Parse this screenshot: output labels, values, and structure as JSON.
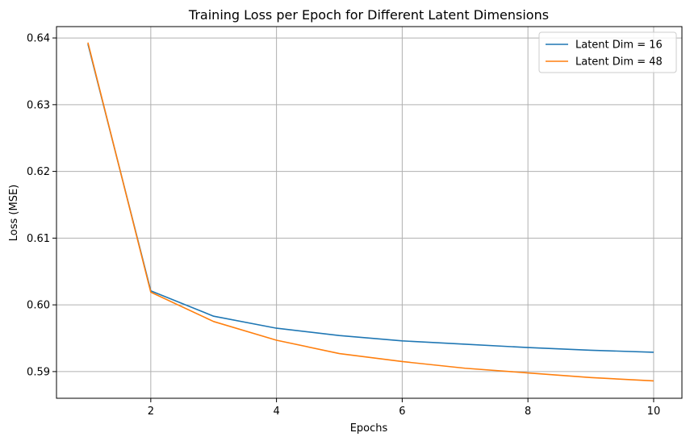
{
  "chart_data": {
    "type": "line",
    "title": "Training Loss per Epoch for Different Latent Dimensions",
    "xlabel": "Epochs",
    "ylabel": "Loss (MSE)",
    "xlim": [
      0.5,
      10.45
    ],
    "ylim": [
      0.586,
      0.6417
    ],
    "xticks": [
      2,
      4,
      6,
      8,
      10
    ],
    "yticks": [
      0.59,
      0.6,
      0.61,
      0.62,
      0.63,
      0.64
    ],
    "ytick_labels": [
      "0.59",
      "0.60",
      "0.61",
      "0.62",
      "0.63",
      "0.64"
    ],
    "grid": true,
    "legend_position": "top-right",
    "x": [
      1,
      2,
      3,
      4,
      5,
      6,
      7,
      8,
      9,
      10
    ],
    "series": [
      {
        "name": "Latent Dim = 16",
        "color": "#1f77b4",
        "values": [
          0.6391,
          0.6021,
          0.5983,
          0.5965,
          0.5954,
          0.5946,
          0.5941,
          0.5936,
          0.5932,
          0.5929
        ]
      },
      {
        "name": "Latent Dim = 48",
        "color": "#ff7f0e",
        "values": [
          0.6393,
          0.6019,
          0.5975,
          0.5947,
          0.5927,
          0.5915,
          0.5905,
          0.5898,
          0.5891,
          0.5886
        ]
      }
    ]
  }
}
